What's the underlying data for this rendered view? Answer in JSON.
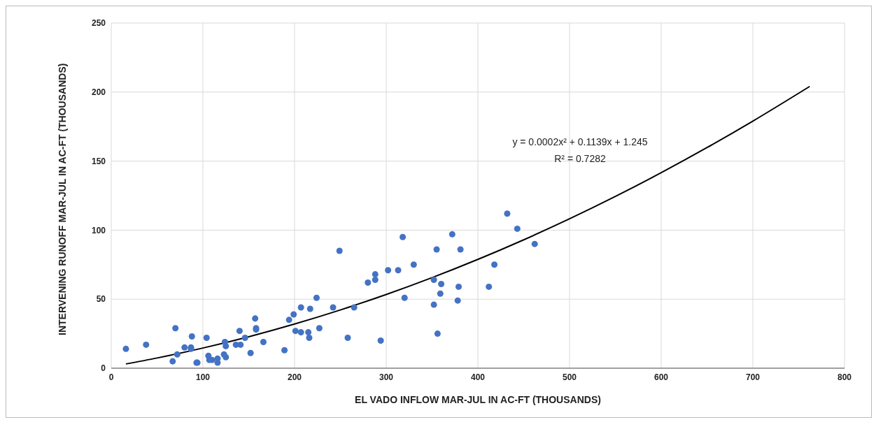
{
  "chart_data": {
    "type": "scatter",
    "xlabel": "EL VADO INFLOW MAR-JUL IN AC-FT (THOUSANDS)",
    "ylabel": "INTERVENING RUNOFF MAR-JUL IN AC-FT (THOUSANDS)",
    "xlim": [
      0,
      800
    ],
    "xticks": [
      0,
      100,
      200,
      300,
      400,
      500,
      600,
      700,
      800
    ],
    "ylim": [
      0,
      250
    ],
    "yticks": [
      0,
      50,
      100,
      150,
      200,
      250
    ],
    "grid": true,
    "series": [
      {
        "color": "#4472c4",
        "marker": "circle",
        "x": [
          16,
          38,
          70,
          72,
          67,
          80,
          88,
          87,
          87,
          93,
          94,
          104,
          106,
          107,
          110,
          116,
          116,
          123,
          124,
          125,
          125,
          136,
          140,
          141,
          146,
          152,
          157,
          158,
          158,
          166,
          189,
          194,
          199,
          201,
          207,
          207,
          215,
          216,
          217,
          224,
          227,
          242,
          249,
          258,
          265,
          280,
          288,
          288,
          294,
          302,
          313,
          318,
          320,
          330,
          352,
          352,
          355,
          356,
          359,
          360,
          372,
          378,
          379,
          381,
          412,
          418,
          432,
          443,
          462
        ],
        "values": [
          14,
          17,
          29,
          10,
          5,
          15,
          23,
          14,
          15,
          4,
          4,
          22,
          9,
          6,
          6,
          7,
          4,
          10,
          19,
          16,
          8,
          17,
          27,
          17,
          22,
          11,
          36,
          29,
          28,
          19,
          13,
          35,
          39,
          27,
          44,
          26,
          26,
          22,
          43,
          51,
          29,
          44,
          85,
          22,
          44,
          62,
          64,
          68,
          20,
          71,
          71,
          95,
          51,
          75,
          64,
          46,
          86,
          25,
          54,
          61,
          97,
          49,
          59,
          86,
          59,
          75,
          112,
          101,
          90
        ]
      },
      {
        "type": "line",
        "color": "#000000",
        "marker": "none",
        "x": [
          16,
          50,
          100,
          150,
          200,
          250,
          300,
          350,
          400,
          450,
          500,
          550,
          600,
          650,
          700,
          762
        ],
        "values": [
          3.1,
          7.4,
          14.6,
          22.8,
          32.0,
          42.2,
          53.4,
          65.6,
          78.8,
          93.0,
          108.2,
          124.4,
          141.6,
          159.8,
          179.0,
          204.1
        ]
      }
    ],
    "annotations": [
      "y = 0.0002x² + 0.1139x + 1.245",
      "R² = 0.7282"
    ]
  }
}
